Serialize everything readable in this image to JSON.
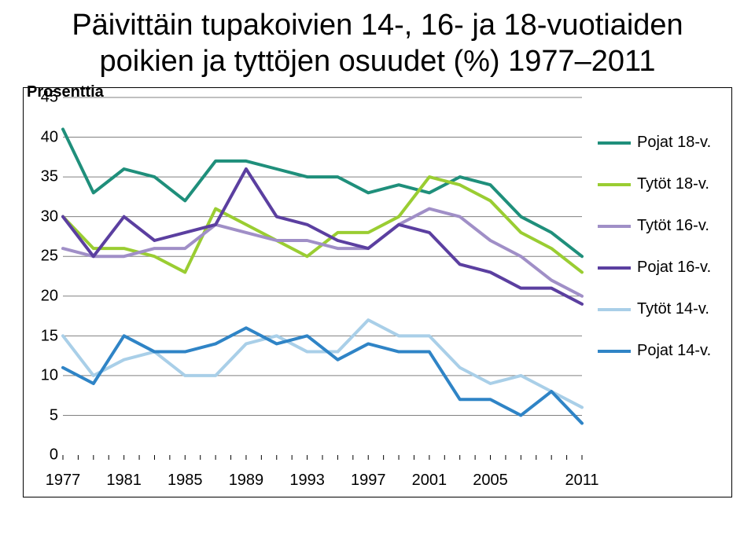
{
  "title_line1": "Päivittäin tupakoivien 14-, 16- ja 18-vuotiaiden",
  "title_line2": "poikien ja tyttöjen osuudet (%) 1977–2011",
  "chart": {
    "type": "line",
    "ylabel": "Prosenttia",
    "ylabel_fontsize": 20,
    "ylim": [
      0,
      45
    ],
    "yticks": [
      0,
      5,
      10,
      15,
      20,
      25,
      30,
      35,
      40,
      45
    ],
    "xlim": [
      1977,
      2011
    ],
    "xticks": [
      1977,
      1981,
      1985,
      1989,
      1993,
      1997,
      2001,
      2005,
      2011
    ],
    "x_minor_every_year": true,
    "grid_color": "#808080",
    "background_color": "#ffffff",
    "line_width": 4,
    "legend_position": "right",
    "series": [
      {
        "name": "Pojat 18-v.",
        "color": "#1f8f7b",
        "points": [
          [
            1977,
            41
          ],
          [
            1979,
            33
          ],
          [
            1981,
            36
          ],
          [
            1983,
            35
          ],
          [
            1985,
            32
          ],
          [
            1987,
            37
          ],
          [
            1989,
            37
          ],
          [
            1991,
            36
          ],
          [
            1993,
            35
          ],
          [
            1995,
            35
          ],
          [
            1997,
            33
          ],
          [
            1999,
            34
          ],
          [
            2001,
            33
          ],
          [
            2003,
            35
          ],
          [
            2005,
            34
          ],
          [
            2007,
            30
          ],
          [
            2009,
            28
          ],
          [
            2011,
            25
          ]
        ]
      },
      {
        "name": "Tytöt 18-v.",
        "color": "#9acd32",
        "points": [
          [
            1977,
            30
          ],
          [
            1979,
            26
          ],
          [
            1981,
            26
          ],
          [
            1983,
            25
          ],
          [
            1985,
            23
          ],
          [
            1987,
            31
          ],
          [
            1989,
            29
          ],
          [
            1991,
            27
          ],
          [
            1993,
            25
          ],
          [
            1995,
            28
          ],
          [
            1997,
            28
          ],
          [
            1999,
            30
          ],
          [
            2001,
            35
          ],
          [
            2003,
            34
          ],
          [
            2005,
            32
          ],
          [
            2007,
            28
          ],
          [
            2009,
            26
          ],
          [
            2011,
            23
          ]
        ]
      },
      {
        "name": "Tytöt 16-v.",
        "color": "#a08fc7",
        "points": [
          [
            1977,
            26
          ],
          [
            1979,
            25
          ],
          [
            1981,
            25
          ],
          [
            1983,
            26
          ],
          [
            1985,
            26
          ],
          [
            1987,
            29
          ],
          [
            1989,
            28
          ],
          [
            1991,
            27
          ],
          [
            1993,
            27
          ],
          [
            1995,
            26
          ],
          [
            1997,
            26
          ],
          [
            1999,
            29
          ],
          [
            2001,
            31
          ],
          [
            2003,
            30
          ],
          [
            2005,
            27
          ],
          [
            2007,
            25
          ],
          [
            2009,
            22
          ],
          [
            2011,
            20
          ]
        ]
      },
      {
        "name": "Pojat 16-v.",
        "color": "#5b3fa0",
        "points": [
          [
            1977,
            30
          ],
          [
            1979,
            25
          ],
          [
            1981,
            30
          ],
          [
            1983,
            27
          ],
          [
            1985,
            28
          ],
          [
            1987,
            29
          ],
          [
            1989,
            36
          ],
          [
            1991,
            30
          ],
          [
            1993,
            29
          ],
          [
            1995,
            27
          ],
          [
            1997,
            26
          ],
          [
            1999,
            29
          ],
          [
            2001,
            28
          ],
          [
            2003,
            24
          ],
          [
            2005,
            23
          ],
          [
            2007,
            21
          ],
          [
            2009,
            21
          ],
          [
            2011,
            19
          ]
        ]
      },
      {
        "name": "Tytöt 14-v.",
        "color": "#a9cfe8",
        "points": [
          [
            1977,
            15
          ],
          [
            1979,
            10
          ],
          [
            1981,
            12
          ],
          [
            1983,
            13
          ],
          [
            1985,
            10
          ],
          [
            1987,
            10
          ],
          [
            1989,
            14
          ],
          [
            1991,
            15
          ],
          [
            1993,
            13
          ],
          [
            1995,
            13
          ],
          [
            1997,
            17
          ],
          [
            1999,
            15
          ],
          [
            2001,
            15
          ],
          [
            2003,
            11
          ],
          [
            2005,
            9
          ],
          [
            2007,
            10
          ],
          [
            2009,
            8
          ],
          [
            2011,
            6
          ]
        ]
      },
      {
        "name": "Pojat 14-v.",
        "color": "#2f84c6",
        "points": [
          [
            1977,
            11
          ],
          [
            1979,
            9
          ],
          [
            1981,
            15
          ],
          [
            1983,
            13
          ],
          [
            1985,
            13
          ],
          [
            1987,
            14
          ],
          [
            1989,
            16
          ],
          [
            1991,
            14
          ],
          [
            1993,
            15
          ],
          [
            1995,
            12
          ],
          [
            1997,
            14
          ],
          [
            1999,
            13
          ],
          [
            2001,
            13
          ],
          [
            2003,
            7
          ],
          [
            2005,
            7
          ],
          [
            2007,
            5
          ],
          [
            2009,
            8
          ],
          [
            2011,
            4
          ]
        ]
      }
    ]
  }
}
